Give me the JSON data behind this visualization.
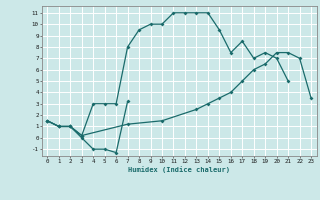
{
  "xlabel": "Humidex (Indice chaleur)",
  "background_color": "#cce8e8",
  "grid_color": "#ffffff",
  "line_color": "#1a6b6b",
  "xlim": [
    -0.5,
    23.5
  ],
  "ylim": [
    -1.6,
    11.6
  ],
  "xticks": [
    0,
    1,
    2,
    3,
    4,
    5,
    6,
    7,
    8,
    9,
    10,
    11,
    12,
    13,
    14,
    15,
    16,
    17,
    18,
    19,
    20,
    21,
    22,
    23
  ],
  "yticks": [
    -1,
    0,
    1,
    2,
    3,
    4,
    5,
    6,
    7,
    8,
    9,
    10,
    11
  ],
  "line1_x": [
    0,
    1,
    2,
    3,
    4,
    5,
    6,
    7,
    8,
    9,
    10,
    11,
    12,
    13,
    14,
    15,
    16,
    17,
    18,
    19,
    20,
    21
  ],
  "line1_y": [
    1.5,
    1.0,
    1.0,
    0.2,
    3.0,
    3.0,
    3.0,
    8.0,
    9.5,
    10.0,
    10.0,
    11.0,
    11.0,
    11.0,
    11.0,
    9.5,
    7.5,
    8.5,
    7.0,
    7.5,
    7.0,
    5.0
  ],
  "line2_x": [
    0,
    1,
    2,
    3,
    4,
    5,
    6,
    7
  ],
  "line2_y": [
    1.5,
    1.0,
    1.0,
    0.0,
    -1.0,
    -1.0,
    -1.3,
    3.2
  ],
  "line3_x": [
    0,
    1,
    2,
    3,
    7,
    10,
    13,
    14,
    15,
    16,
    17,
    18,
    19,
    20,
    21,
    22,
    23
  ],
  "line3_y": [
    1.5,
    1.0,
    1.0,
    0.2,
    1.2,
    1.5,
    2.5,
    3.0,
    3.5,
    4.0,
    5.0,
    6.0,
    6.5,
    7.5,
    7.5,
    7.0,
    3.5
  ]
}
